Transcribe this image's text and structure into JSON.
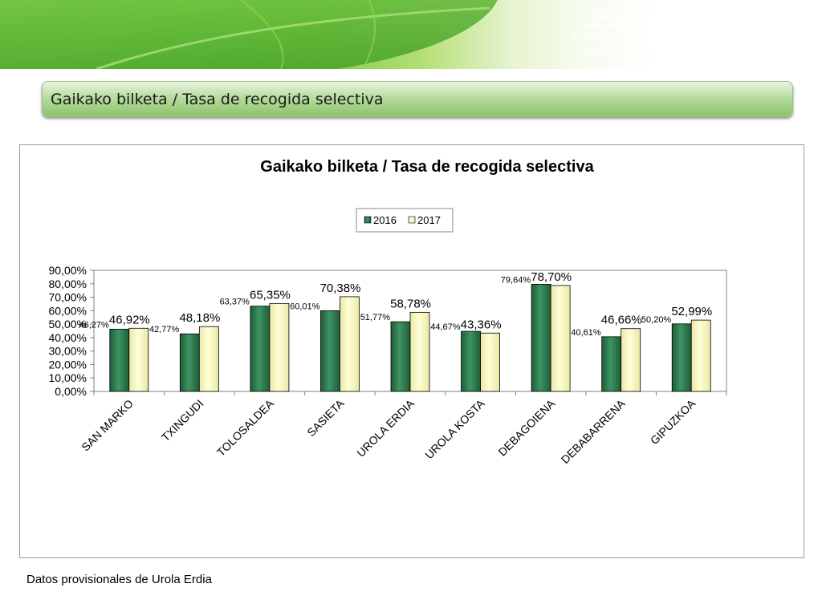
{
  "header": {
    "org_line1": "Gipuzkoako",
    "org_line2": "Foru Aldundia",
    "dept_line1": "Departamento de Medio Ambiente",
    "dept_line2": "y Obras Hidráulicas",
    "brand_small": "ORAIN",
    "brand_big": "GIPUZKOA",
    "colors": {
      "banner_green": "#4fae2a",
      "brand_gray": "#ffffff"
    }
  },
  "slide_title": "Gaikako bilketa / Tasa de recogida selectiva",
  "footnote": "Datos provisionales de Urola Erdia",
  "chart_data": {
    "type": "bar",
    "title": "Gaikako bilketa / Tasa de recogida selectiva",
    "categories": [
      "SAN MARKO",
      "TXINGUDI",
      "TOLOSALDEA",
      "SASIETA",
      "UROLA ERDIA",
      "UROLA KOSTA",
      "DEBAGOIENA",
      "DEBABARRENA",
      "GIPUZKOA"
    ],
    "series": [
      {
        "name": "2016",
        "color": "#2e7a4f",
        "values": [
          46.27,
          42.77,
          63.37,
          60.01,
          51.77,
          44.67,
          79.64,
          40.61,
          50.2
        ],
        "labels": [
          "46,27%",
          "42,77%",
          "63,37%",
          "60,01%",
          "51,77%",
          "44,67%",
          "79,64%",
          "40,61%",
          "50,20%"
        ]
      },
      {
        "name": "2017",
        "color": "#ffffc0",
        "values": [
          46.92,
          48.18,
          65.35,
          70.38,
          58.78,
          43.36,
          78.7,
          46.66,
          52.99
        ],
        "labels": [
          "46,92%",
          "48,18%",
          "65,35%",
          "70,38%",
          "58,78%",
          "43,36%",
          "78,70%",
          "46,66%",
          "52,99%"
        ]
      }
    ],
    "ylim": [
      0,
      90
    ],
    "yticks": [
      0,
      10,
      20,
      30,
      40,
      50,
      60,
      70,
      80,
      90
    ],
    "ytick_labels": [
      "0,00%",
      "10,00%",
      "20,00%",
      "30,00%",
      "40,00%",
      "50,00%",
      "60,00%",
      "70,00%",
      "80,00%",
      "90,00%"
    ],
    "xlabel": "",
    "ylabel": "",
    "grid": false,
    "legend": "top-center"
  }
}
